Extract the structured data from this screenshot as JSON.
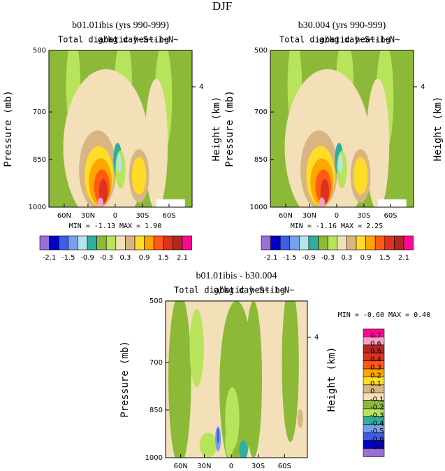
{
  "title": "DJF",
  "panels": [
    {
      "title": "b01.01ibis (yrs 990-999)",
      "subtitle_left": "Total diabatic heating",
      "subtitle_right": "g/kg day~S~-1~N~",
      "y_label": "Pressure (mb)",
      "y2_label": "Height (km)",
      "yticks": [
        "500",
        "700",
        "850",
        "1000"
      ],
      "y2ticks": [
        "4"
      ],
      "xticks": [
        "60N",
        "30N",
        "0",
        "30S",
        "60S"
      ],
      "stats": "MIN =   -1.13   MAX =    1.90",
      "colorbar_labels": [
        "-2.1",
        "-1.5",
        "-0.9",
        "-0.3",
        "0.3",
        "0.9",
        "1.5",
        "2.1"
      ]
    },
    {
      "title": "b30.004 (yrs 990-999)",
      "subtitle_left": "Total diabatic heating",
      "subtitle_right": "g/kg day~S~-1~N~",
      "y_label": "Pressure (mb)",
      "y2_label": "Height (km)",
      "yticks": [
        "500",
        "700",
        "850",
        "1000"
      ],
      "y2ticks": [
        "4"
      ],
      "xticks": [
        "60N",
        "30N",
        "0",
        "30S",
        "60S"
      ],
      "stats": "MIN =   -1.16   MAX =    2.25",
      "colorbar_labels": [
        "-2.1",
        "-1.5",
        "-0.9",
        "-0.3",
        "0.3",
        "0.9",
        "1.5",
        "2.1"
      ]
    },
    {
      "title": "b01.01ibis - b30.004",
      "subtitle_left": "Total diabatic heating",
      "subtitle_right": "g/kg day~S~-1~N~",
      "y_label": "Pressure (mb)",
      "y2_label": "Height (km)",
      "yticks": [
        "500",
        "700",
        "850",
        "1000"
      ],
      "y2ticks": [
        "4"
      ],
      "xticks": [
        "60N",
        "30N",
        "0",
        "30S",
        "60S"
      ],
      "stats": "MIN =   -0.60   MAX =    0.40",
      "colorbar_labels": [
        "0.7",
        "0.6",
        "0.5",
        "0.4",
        "0.3",
        "0.2",
        "0.1",
        "0",
        "-0.1",
        "-0.2",
        "-0.3",
        "-0.4",
        "-0.5",
        "-0.6",
        "-0.7"
      ]
    }
  ],
  "colormap": [
    "#9a6fd6",
    "#0000c8",
    "#3c5ee6",
    "#78a0ec",
    "#b4e4ec",
    "#2eae9e",
    "#8cba38",
    "#b8e45c",
    "#f3dfb8",
    "#d9b584",
    "#ffdc28",
    "#ffa500",
    "#ff5a14",
    "#dc3220",
    "#b0281e",
    "#ffa0c8",
    "#ff0896"
  ]
}
